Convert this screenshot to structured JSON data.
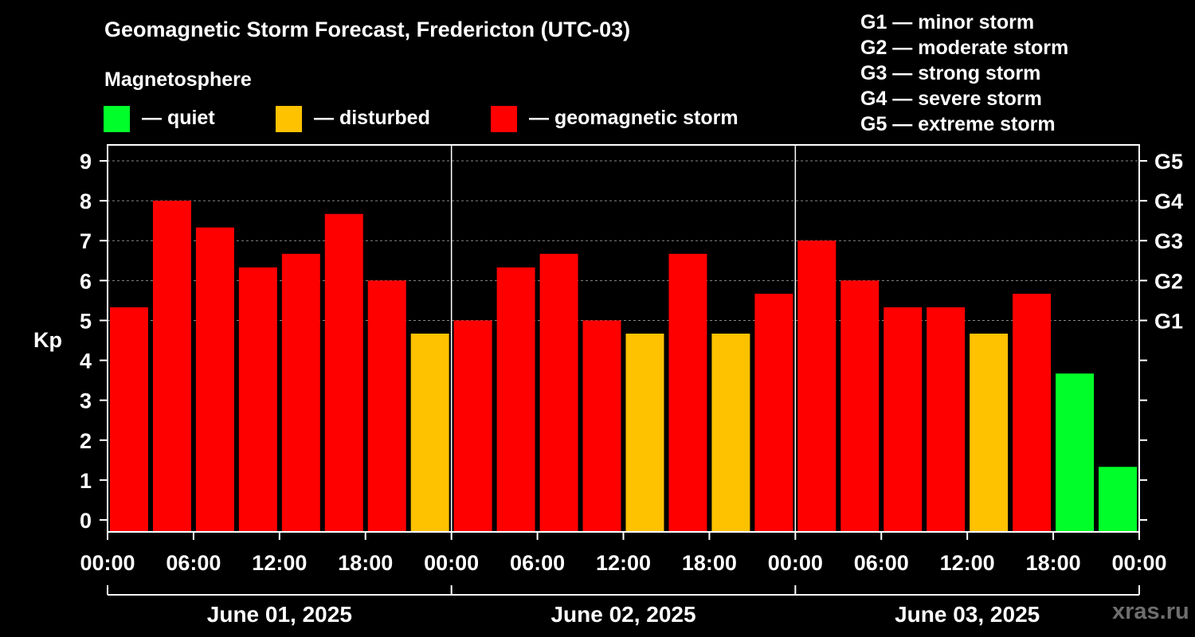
{
  "header": {
    "title": "Geomagnetic Storm Forecast, Fredericton (UTC-03)",
    "subtitle": "Magnetosphere"
  },
  "legend": [
    {
      "label": "— quiet",
      "color": "#00ff2a"
    },
    {
      "label": "— disturbed",
      "color": "#ffc200"
    },
    {
      "label": "— geomagnetic storm",
      "color": "#ff0000"
    }
  ],
  "storm_scale": [
    "G1 — minor storm",
    "G2 — moderate storm",
    "G3 — strong storm",
    "G4 — severe storm",
    "G5 — extreme storm"
  ],
  "watermark": "xras.ru",
  "chart_data": {
    "type": "bar",
    "title": "Geomagnetic Storm Forecast, Fredericton (UTC-03)",
    "ylabel": "Kp",
    "ylim": [
      -0.3,
      9.4
    ],
    "yticks": [
      "0",
      "1",
      "2",
      "3",
      "4",
      "5",
      "6",
      "7",
      "8",
      "9"
    ],
    "right_ticks": [
      {
        "kp": 5,
        "label": "G1"
      },
      {
        "kp": 6,
        "label": "G2"
      },
      {
        "kp": 7,
        "label": "G3"
      },
      {
        "kp": 8,
        "label": "G4"
      },
      {
        "kp": 9,
        "label": "G5"
      }
    ],
    "xtick_labels": [
      "00:00",
      "06:00",
      "12:00",
      "18:00",
      "00:00",
      "06:00",
      "12:00",
      "18:00",
      "00:00",
      "06:00",
      "12:00",
      "18:00",
      "00:00"
    ],
    "days": [
      "June 01, 2025",
      "June 02, 2025",
      "June 03, 2025"
    ],
    "interval_hours": 3,
    "values": [
      5.33,
      8.0,
      7.33,
      6.33,
      6.67,
      7.67,
      6.0,
      4.67,
      5.0,
      6.33,
      6.67,
      5.0,
      4.67,
      6.67,
      4.67,
      5.67,
      7.0,
      6.0,
      5.33,
      5.33,
      4.67,
      5.67,
      3.67,
      1.33
    ],
    "levels": [
      "storm",
      "storm",
      "storm",
      "storm",
      "storm",
      "storm",
      "storm",
      "disturbed",
      "storm",
      "storm",
      "storm",
      "storm",
      "disturbed",
      "storm",
      "disturbed",
      "storm",
      "storm",
      "storm",
      "storm",
      "storm",
      "disturbed",
      "storm",
      "quiet",
      "quiet"
    ],
    "level_colors": {
      "quiet": "#00ff2a",
      "disturbed": "#ffc200",
      "storm": "#ff0000"
    }
  }
}
